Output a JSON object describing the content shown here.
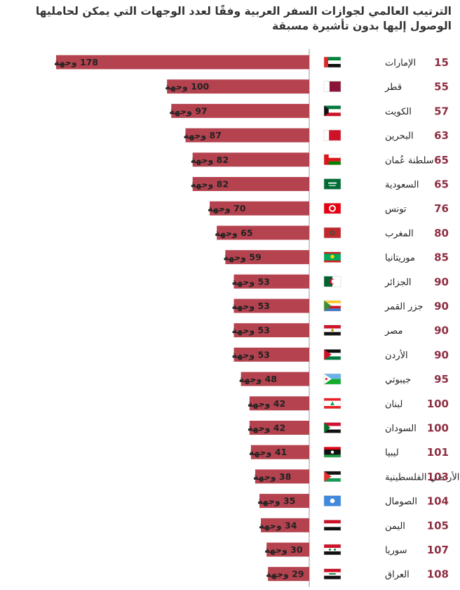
{
  "chart_data": {
    "type": "bar",
    "orientation": "horizontal",
    "title": "الترتيب العالمي لجوازات السفر العربية وفقًا لعدد الوجهات التي يمكن لحامليها الوصول إليها بدون تأشيرة مسبقة",
    "unit": "وجهة",
    "xlim": [
      0,
      178
    ],
    "categories": [
      "الإمارات",
      "قطر",
      "الكويت",
      "البحرين",
      "سلطنة عُمان",
      "السعودية",
      "تونس",
      "المغرب",
      "موريتانيا",
      "الجزائر",
      "جزر القمر",
      "مصر",
      "الأردن",
      "جيبوتي",
      "لبنان",
      "السودان",
      "ليبيا",
      "الأراضي الفلسطينية",
      "الصومال",
      "اليمن",
      "سوريا",
      "العراق"
    ],
    "values": [
      178,
      100,
      97,
      87,
      82,
      82,
      70,
      65,
      59,
      53,
      53,
      53,
      53,
      48,
      42,
      42,
      41,
      38,
      35,
      34,
      30,
      29
    ],
    "value_labels": [
      "178 وجهة",
      "100 وجهة",
      "97 وجهة",
      "87 وجهة",
      "82 وجهة",
      "82 وجهة",
      "70 وجهة",
      "65 وجهة",
      "59 وجهة",
      "53 وجهة",
      "53 وجهة",
      "53 وجهة",
      "53 وجهة",
      "48 وجهة",
      "42 وجهة",
      "42 وجهة",
      "41 وجهة",
      "38 وجهة",
      "35 وجهة",
      "34 وجهة",
      "30 وجهة",
      "29 وجهة"
    ],
    "ranks": [
      "15",
      "55",
      "57",
      "63",
      "65",
      "65",
      "76",
      "80",
      "85",
      "90",
      "90",
      "90",
      "90",
      "95",
      "100",
      "100",
      "101",
      "103",
      "104",
      "105",
      "107",
      "108"
    ],
    "flag_icons": [
      "flag-uae-icon",
      "flag-qatar-icon",
      "flag-kuwait-icon",
      "flag-bahrain-icon",
      "flag-oman-icon",
      "flag-saudi-icon",
      "flag-tunisia-icon",
      "flag-morocco-icon",
      "flag-mauritania-icon",
      "flag-algeria-icon",
      "flag-comoros-icon",
      "flag-egypt-icon",
      "flag-jordan-icon",
      "flag-djibouti-icon",
      "flag-lebanon-icon",
      "flag-sudan-icon",
      "flag-libya-icon",
      "flag-palestine-icon",
      "flag-somalia-icon",
      "flag-yemen-icon",
      "flag-syria-icon",
      "flag-iraq-icon"
    ],
    "colors": {
      "bar": "#b5434f",
      "rank": "#8e2e42",
      "axis": "#999999"
    }
  }
}
